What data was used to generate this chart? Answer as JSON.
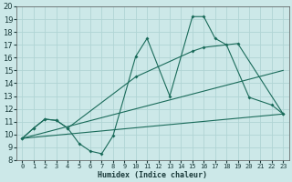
{
  "xlabel": "Humidex (Indice chaleur)",
  "background_color": "#cce8e8",
  "grid_color": "#b0d4d4",
  "line_color": "#1a6b5a",
  "xlim": [
    -0.5,
    23.5
  ],
  "ylim": [
    8,
    20
  ],
  "xticks": [
    0,
    1,
    2,
    3,
    4,
    5,
    6,
    7,
    8,
    9,
    10,
    11,
    12,
    13,
    14,
    15,
    16,
    17,
    18,
    19,
    20,
    21,
    22,
    23
  ],
  "yticks": [
    8,
    9,
    10,
    11,
    12,
    13,
    14,
    15,
    16,
    17,
    18,
    19,
    20
  ],
  "series1_x": [
    0,
    1,
    2,
    3,
    4,
    5,
    6,
    7,
    8,
    10,
    11,
    13,
    15,
    16,
    17,
    18,
    20,
    22,
    23
  ],
  "series1_y": [
    9.7,
    10.5,
    11.2,
    11.1,
    10.5,
    9.3,
    8.7,
    8.5,
    9.9,
    16.1,
    17.5,
    13.0,
    19.2,
    19.2,
    17.5,
    17.0,
    12.9,
    12.3,
    11.6
  ],
  "series2_x": [
    0,
    1,
    2,
    3,
    4,
    10,
    15,
    16,
    19,
    23
  ],
  "series2_y": [
    9.7,
    10.5,
    11.2,
    11.1,
    10.5,
    14.5,
    16.5,
    16.8,
    17.1,
    11.6
  ],
  "series3_x": [
    0,
    23
  ],
  "series3_y": [
    9.7,
    11.6
  ],
  "series4_x": [
    0,
    23
  ],
  "series4_y": [
    9.7,
    15.0
  ]
}
